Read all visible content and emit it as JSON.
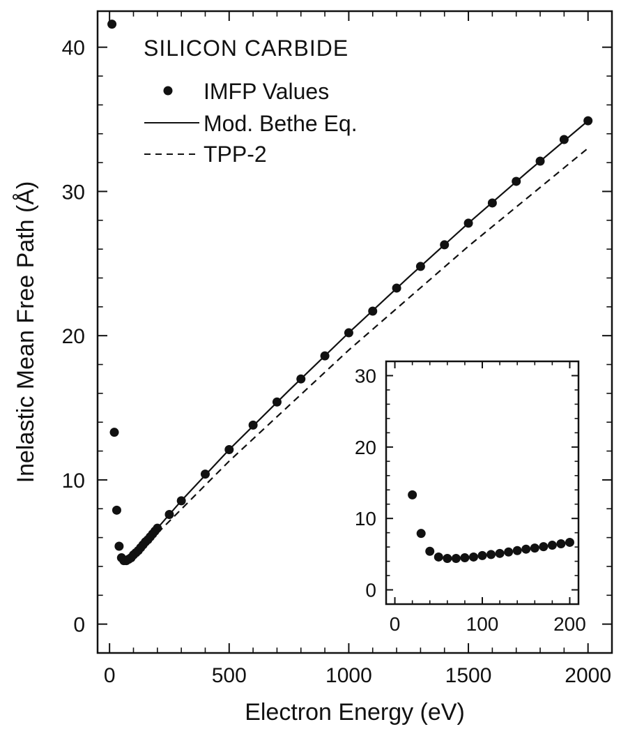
{
  "chart_data": [
    {
      "type": "scatter",
      "title": "SILICON CARBIDE",
      "xlabel": "Electron Energy (eV)",
      "ylabel": "Inelastic Mean Free Path (Å)",
      "xlim": [
        -50,
        2100
      ],
      "ylim": [
        -2,
        42.5
      ],
      "xticks": [
        0,
        500,
        1000,
        1500,
        2000
      ],
      "yticks": [
        0,
        10,
        20,
        30,
        40
      ],
      "legend_position": "top-left",
      "legend": [
        {
          "label": "IMFP Values",
          "style": "dot"
        },
        {
          "label": "Mod. Bethe Eq.",
          "style": "solid"
        },
        {
          "label": "TPP-2",
          "style": "dashed"
        }
      ],
      "series": [
        {
          "name": "IMFP Values",
          "style": "dot",
          "color": "#111111",
          "points": [
            [
              10,
              41.6
            ],
            [
              20,
              13.3
            ],
            [
              30,
              7.9
            ],
            [
              40,
              5.4
            ],
            [
              50,
              4.6
            ],
            [
              60,
              4.4
            ],
            [
              70,
              4.4
            ],
            [
              80,
              4.5
            ],
            [
              90,
              4.6
            ],
            [
              100,
              4.8
            ],
            [
              110,
              4.95
            ],
            [
              120,
              5.1
            ],
            [
              130,
              5.3
            ],
            [
              140,
              5.5
            ],
            [
              150,
              5.7
            ],
            [
              160,
              5.85
            ],
            [
              170,
              6.05
            ],
            [
              180,
              6.25
            ],
            [
              190,
              6.45
            ],
            [
              200,
              6.65
            ],
            [
              250,
              7.6
            ],
            [
              300,
              8.55
            ],
            [
              400,
              10.4
            ],
            [
              500,
              12.1
            ],
            [
              600,
              13.8
            ],
            [
              700,
              15.4
            ],
            [
              800,
              17.0
            ],
            [
              900,
              18.6
            ],
            [
              1000,
              20.2
            ],
            [
              1100,
              21.7
            ],
            [
              1200,
              23.3
            ],
            [
              1300,
              24.8
            ],
            [
              1400,
              26.3
            ],
            [
              1500,
              27.8
            ],
            [
              1600,
              29.2
            ],
            [
              1700,
              30.7
            ],
            [
              1800,
              32.1
            ],
            [
              1900,
              33.6
            ],
            [
              2000,
              34.9
            ]
          ]
        },
        {
          "name": "Mod. Bethe Eq.",
          "style": "solid",
          "color": "#111111",
          "points": [
            [
              50,
              4.3
            ],
            [
              100,
              4.8
            ],
            [
              150,
              5.7
            ],
            [
              200,
              6.65
            ],
            [
              300,
              8.55
            ],
            [
              500,
              12.1
            ],
            [
              750,
              16.2
            ],
            [
              1000,
              20.2
            ],
            [
              1250,
              24.05
            ],
            [
              1500,
              27.8
            ],
            [
              1750,
              31.4
            ],
            [
              2000,
              34.9
            ]
          ]
        },
        {
          "name": "TPP-2",
          "style": "dashed",
          "color": "#111111",
          "points": [
            [
              50,
              4.2
            ],
            [
              100,
              4.7
            ],
            [
              200,
              6.3
            ],
            [
              500,
              11.3
            ],
            [
              1000,
              19.0
            ],
            [
              1500,
              26.2
            ],
            [
              2000,
              33.0
            ]
          ]
        }
      ]
    },
    {
      "type": "scatter",
      "title": "",
      "xlabel": "",
      "ylabel": "",
      "xlim": [
        -10,
        210
      ],
      "ylim": [
        -2,
        32
      ],
      "xticks": [
        0,
        100,
        200
      ],
      "yticks": [
        0,
        10,
        20,
        30
      ],
      "series": [
        {
          "name": "",
          "style": "dot",
          "color": "#111111",
          "points": [
            [
              20,
              13.3
            ],
            [
              30,
              7.9
            ],
            [
              40,
              5.4
            ],
            [
              50,
              4.6
            ],
            [
              60,
              4.4
            ],
            [
              70,
              4.4
            ],
            [
              80,
              4.5
            ],
            [
              90,
              4.6
            ],
            [
              100,
              4.8
            ],
            [
              110,
              4.95
            ],
            [
              120,
              5.1
            ],
            [
              130,
              5.3
            ],
            [
              140,
              5.5
            ],
            [
              150,
              5.7
            ],
            [
              160,
              5.85
            ],
            [
              170,
              6.05
            ],
            [
              180,
              6.25
            ],
            [
              190,
              6.45
            ],
            [
              200,
              6.65
            ]
          ]
        }
      ]
    }
  ]
}
